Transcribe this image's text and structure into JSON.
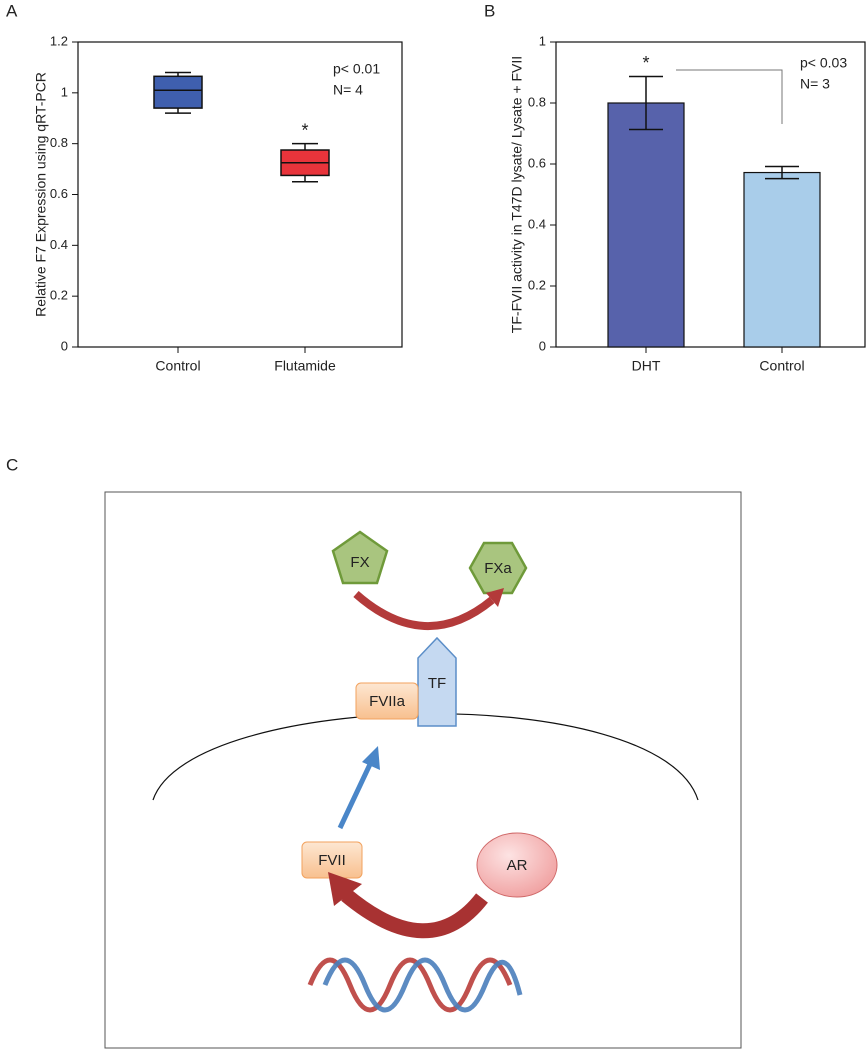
{
  "chart_data": [
    {
      "type": "box",
      "panel_label": "A",
      "y_label": "Relative F7 Expression using qRT-PCR",
      "categories": [
        "Control",
        "Flutamide"
      ],
      "colors": [
        "#3f5fae",
        "#e8343b"
      ],
      "boxes": [
        {
          "min": 0.92,
          "q1": 0.94,
          "median": 1.01,
          "q3": 1.065,
          "max": 1.08
        },
        {
          "min": 0.65,
          "q1": 0.675,
          "median": 0.725,
          "q3": 0.775,
          "max": 0.8
        }
      ],
      "annotations": [
        "p< 0.01",
        "N= 4"
      ],
      "significance": "*",
      "ylim": [
        0,
        1.2
      ],
      "yticks": [
        0,
        0.2,
        0.4,
        0.6,
        0.8,
        1,
        1.2
      ]
    },
    {
      "type": "bar",
      "panel_label": "B",
      "y_label": "TF-FVII activity in T47D lysate/ Lysate + FVII",
      "categories": [
        "DHT",
        "Control"
      ],
      "colors": [
        "#5762ab",
        "#a9cdea"
      ],
      "values": [
        0.8,
        0.572
      ],
      "errors": [
        0.087,
        0.02
      ],
      "annotations": [
        "p< 0.03",
        "N= 3"
      ],
      "significance": "*",
      "ylim": [
        0,
        1
      ],
      "yticks": [
        0,
        0.2,
        0.4,
        0.6,
        0.8,
        1
      ]
    }
  ],
  "diagram": {
    "panel_label": "C",
    "nodes": [
      {
        "label": "FX"
      },
      {
        "label": "FXa"
      },
      {
        "label": "TF"
      },
      {
        "label": "FVIIa"
      },
      {
        "label": "FVII"
      },
      {
        "label": "AR"
      }
    ]
  }
}
